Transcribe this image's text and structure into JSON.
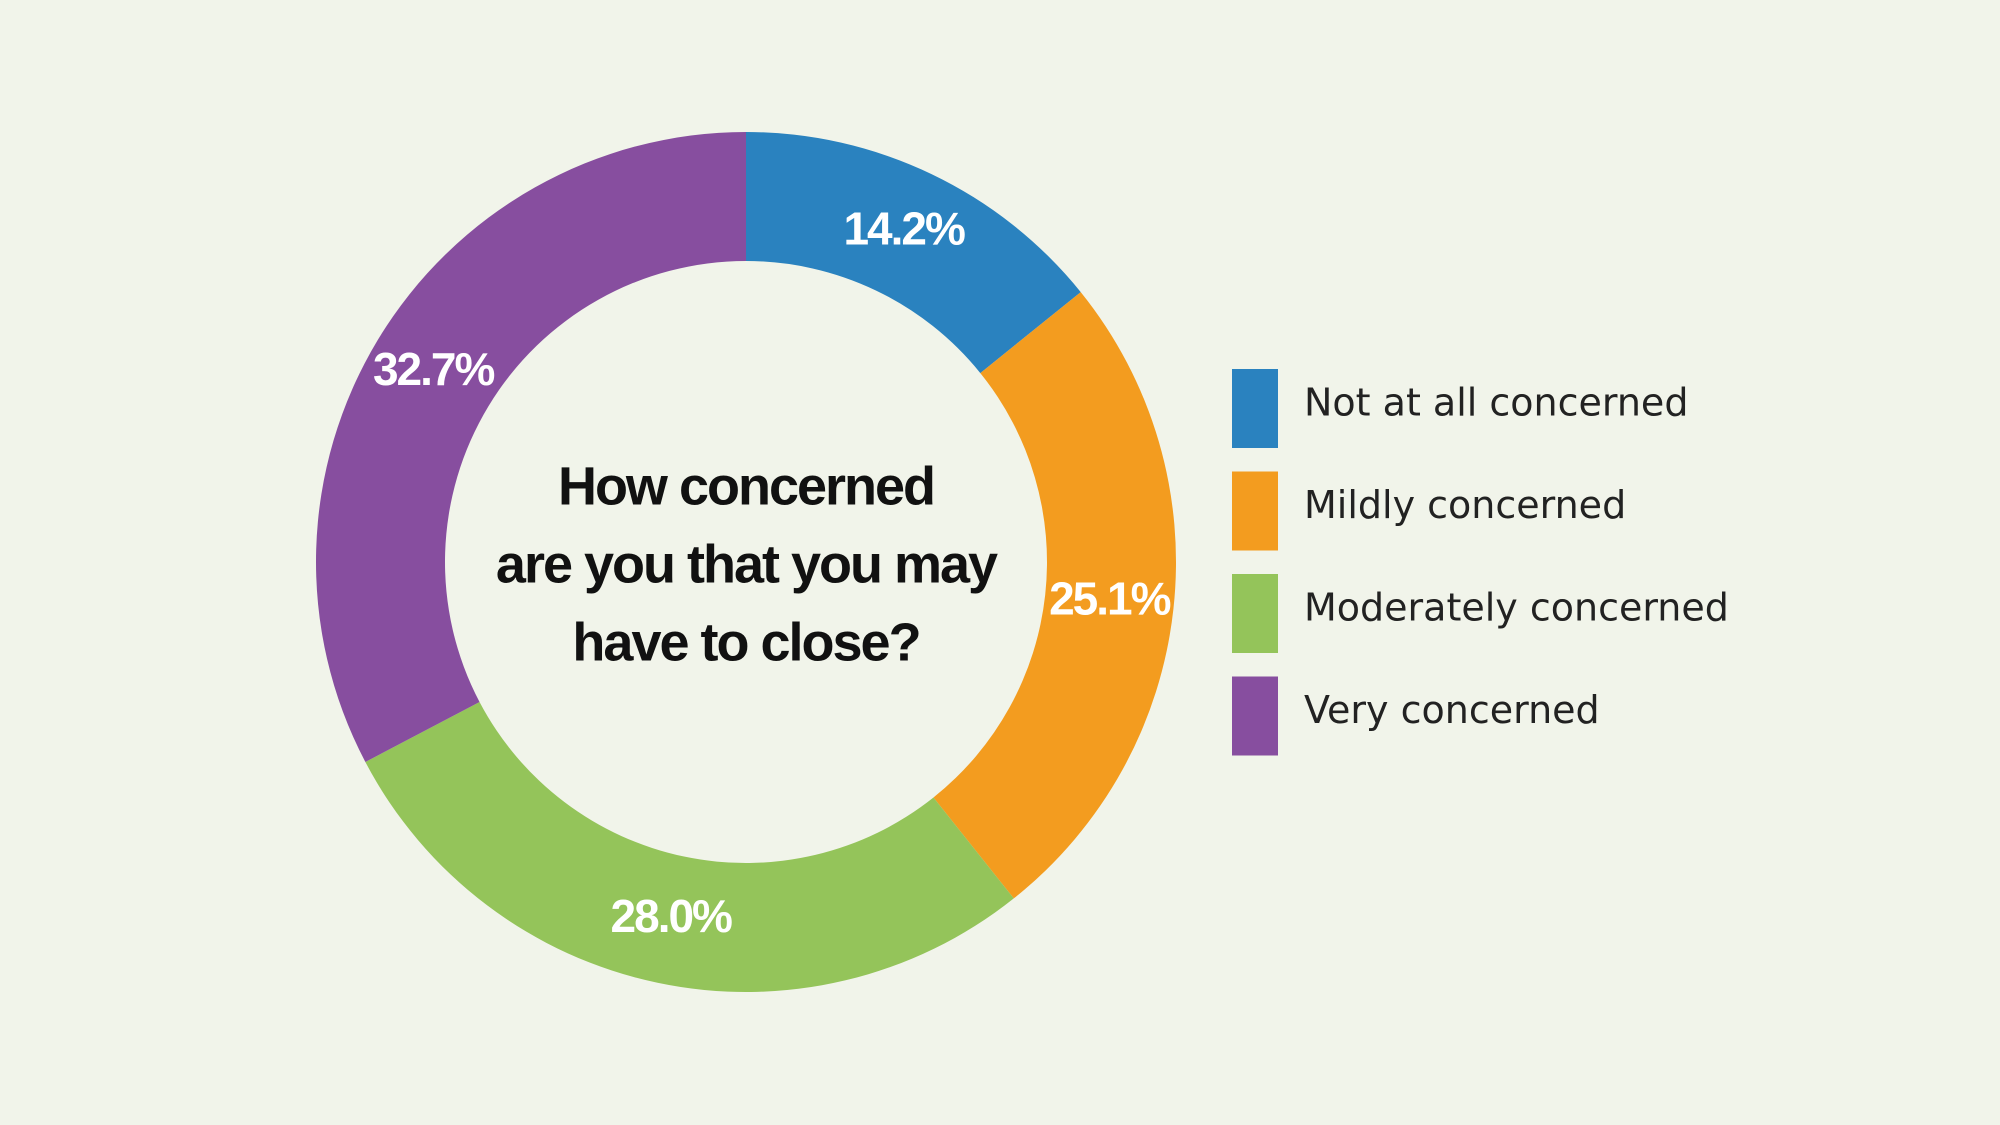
{
  "chart_data": {
    "type": "donut",
    "title": [
      "How concerned",
      "are you that you may",
      "have to close?"
    ],
    "categories": [
      "Not at all concerned",
      "Mildly concerned",
      "Moderately concerned",
      "Very concerned"
    ],
    "values": [
      14.2,
      25.1,
      28.0,
      32.7
    ],
    "value_labels": [
      "14.2%",
      "25.1%",
      "28.0%",
      "32.7%"
    ],
    "colors": [
      "#2a82bf",
      "#f39c1f",
      "#94c45a",
      "#874e9f"
    ],
    "legend": "right"
  }
}
